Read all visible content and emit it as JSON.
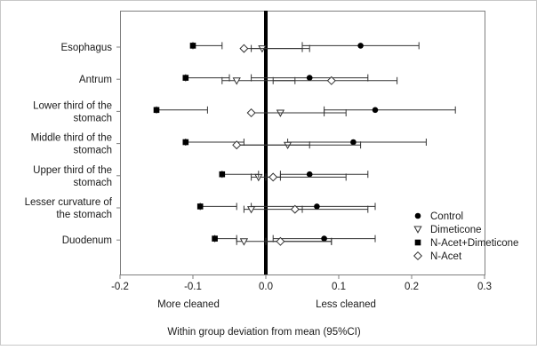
{
  "chart_data": {
    "type": "scatter",
    "orientation": "horizontal",
    "title": "",
    "xlabel": "Within group deviation from mean (95%CI)",
    "ylabel": "",
    "xlim": [
      -0.2,
      0.3
    ],
    "x_ticks": [
      "-0.2",
      "-0.1",
      "0.0",
      "0.1",
      "0.2",
      "0.3"
    ],
    "x_tick_values": [
      -0.2,
      -0.1,
      0.0,
      0.1,
      0.2,
      0.3
    ],
    "reference_line": 0,
    "legend_position": "right",
    "grid": false,
    "annotations": {
      "left": "More cleaned",
      "right": "Less cleaned"
    },
    "categories": [
      [
        "Esophagus"
      ],
      [
        "Antrum"
      ],
      [
        "Lower third of the",
        "stomach"
      ],
      [
        "Middle third of the",
        "stomach"
      ],
      [
        "Upper third of the",
        "stomach"
      ],
      [
        "Lesser curvature of",
        "the stomach"
      ],
      [
        "Duodenum"
      ]
    ],
    "series": [
      {
        "name": "Control",
        "marker": "circle",
        "values": [
          {
            "x": 0.13,
            "low": 0.05,
            "high": 0.21
          },
          {
            "x": 0.06,
            "low": -0.02,
            "high": 0.14
          },
          {
            "x": 0.15,
            "low": 0.08,
            "high": 0.26
          },
          {
            "x": 0.12,
            "low": 0.03,
            "high": 0.22
          },
          {
            "x": 0.06,
            "low": 0.02,
            "high": 0.14
          },
          {
            "x": 0.07,
            "low": -0.02,
            "high": 0.15
          },
          {
            "x": 0.08,
            "low": 0.01,
            "high": 0.15
          }
        ]
      },
      {
        "name": "Dimeticone",
        "marker": "triangle-down",
        "values": [
          {
            "x": -0.005,
            "low": -0.02,
            "high": 0.06
          },
          {
            "x": -0.04,
            "low": -0.06,
            "high": 0.04
          },
          {
            "x": 0.02,
            "low": -0.02,
            "high": 0.08
          },
          {
            "x": 0.03,
            "low": -0.04,
            "high": 0.13
          },
          {
            "x": -0.01,
            "low": -0.02,
            "high": 0.02
          },
          {
            "x": -0.02,
            "low": -0.03,
            "high": 0.05
          },
          {
            "x": -0.03,
            "low": -0.04,
            "high": 0.09
          }
        ]
      },
      {
        "name": "N-Acet+Dimeticone",
        "marker": "square",
        "values": [
          {
            "x": -0.1,
            "low": -0.1,
            "high": -0.06
          },
          {
            "x": -0.11,
            "low": -0.11,
            "high": -0.05
          },
          {
            "x": -0.15,
            "low": -0.15,
            "high": -0.08
          },
          {
            "x": -0.11,
            "low": -0.11,
            "high": -0.03
          },
          {
            "x": -0.06,
            "low": -0.06,
            "high": -0.01
          },
          {
            "x": -0.09,
            "low": -0.09,
            "high": -0.04
          },
          {
            "x": -0.07,
            "low": -0.07,
            "high": -0.04
          }
        ]
      },
      {
        "name": "N-Acet",
        "marker": "diamond",
        "values": [
          {
            "x": -0.03,
            "low": -0.03,
            "high": 0.05
          },
          {
            "x": 0.09,
            "low": 0.01,
            "high": 0.18
          },
          {
            "x": -0.02,
            "low": -0.02,
            "high": 0.11
          },
          {
            "x": -0.04,
            "low": -0.04,
            "high": 0.06
          },
          {
            "x": 0.01,
            "low": 0.0,
            "high": 0.11
          },
          {
            "x": 0.04,
            "low": 0.04,
            "high": 0.14
          },
          {
            "x": 0.02,
            "low": 0.0,
            "high": 0.09
          }
        ]
      }
    ]
  }
}
